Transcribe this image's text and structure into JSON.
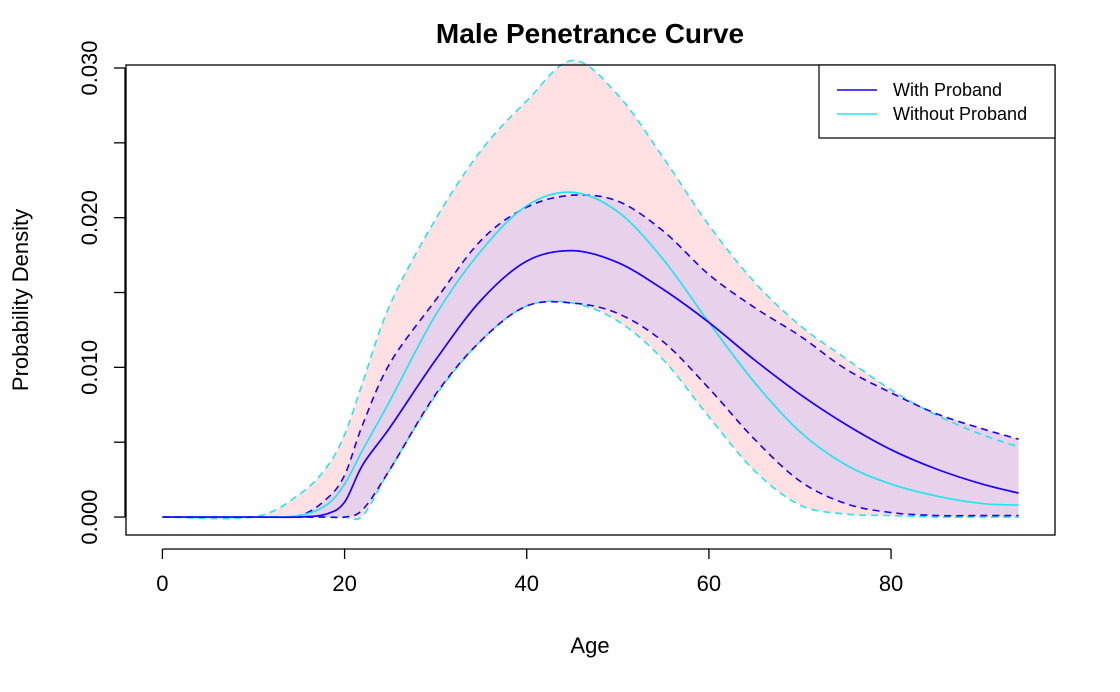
{
  "colors": {
    "with_proband": "#1a00ff",
    "without_proband": "#22e6ee",
    "ci_without_fill": "#ffe1e3",
    "ci_with_fill": "#e8d1ea",
    "axis": "#000000",
    "background": "#ffffff"
  },
  "chart_data": {
    "type": "line",
    "title": "Male Penetrance Curve",
    "xlabel": "Age",
    "ylabel": "Probability Density",
    "xlim": [
      -4,
      98
    ],
    "ylim": [
      -0.0012,
      0.0302
    ],
    "xticks": [
      0,
      20,
      40,
      60,
      80
    ],
    "xtick_labels": [
      "0",
      "20",
      "40",
      "60",
      "80"
    ],
    "yticks": [
      0.0,
      0.005,
      0.01,
      0.015,
      0.02,
      0.025,
      0.03
    ],
    "ytick_labels": [
      "0.000",
      "",
      "0.010",
      "",
      "0.020",
      "",
      "0.030"
    ],
    "legend_position": "top-right",
    "legend": [
      "With Proband",
      "Without Proband"
    ],
    "x": [
      0,
      10,
      15,
      18,
      20,
      22,
      25,
      30,
      35,
      40,
      45,
      50,
      55,
      60,
      65,
      70,
      75,
      80,
      85,
      90,
      94
    ],
    "series": [
      {
        "name": "With Proband",
        "values": [
          0,
          0,
          0.0,
          0.0002,
          0.001,
          0.0035,
          0.006,
          0.0105,
          0.0145,
          0.0171,
          0.0178,
          0.017,
          0.0152,
          0.013,
          0.0105,
          0.0082,
          0.0062,
          0.0045,
          0.0032,
          0.0022,
          0.0016
        ],
        "lower": [
          0,
          0,
          0,
          0,
          0,
          0.0005,
          0.0032,
          0.0082,
          0.0118,
          0.0141,
          0.0143,
          0.0136,
          0.0117,
          0.0086,
          0.0052,
          0.0024,
          0.0009,
          0.0003,
          0.0001,
          0.0001,
          0.0001
        ],
        "upper": [
          0,
          0,
          0.0001,
          0.0012,
          0.0028,
          0.0062,
          0.0103,
          0.0145,
          0.0185,
          0.0207,
          0.0215,
          0.0211,
          0.0191,
          0.0162,
          0.014,
          0.0121,
          0.0099,
          0.0083,
          0.0069,
          0.0059,
          0.0052
        ]
      },
      {
        "name": "Without Proband",
        "values": [
          0,
          0,
          0.0001,
          0.0008,
          0.0022,
          0.0045,
          0.0078,
          0.0135,
          0.0178,
          0.0208,
          0.0217,
          0.0204,
          0.0172,
          0.013,
          0.009,
          0.0057,
          0.0035,
          0.0022,
          0.0014,
          0.0009,
          0.0008
        ],
        "lower": [
          0,
          0,
          0,
          0,
          0,
          0.0001,
          0.0032,
          0.0081,
          0.0118,
          0.0141,
          0.0143,
          0.0131,
          0.0105,
          0.0067,
          0.0031,
          0.0008,
          0.0002,
          0.0001,
          0,
          0,
          0
        ],
        "upper": [
          0,
          0,
          0.0015,
          0.0033,
          0.0055,
          0.009,
          0.0142,
          0.0199,
          0.0245,
          0.0278,
          0.0305,
          0.0282,
          0.024,
          0.0195,
          0.0157,
          0.0128,
          0.0106,
          0.0085,
          0.0068,
          0.0055,
          0.0047
        ]
      }
    ]
  }
}
